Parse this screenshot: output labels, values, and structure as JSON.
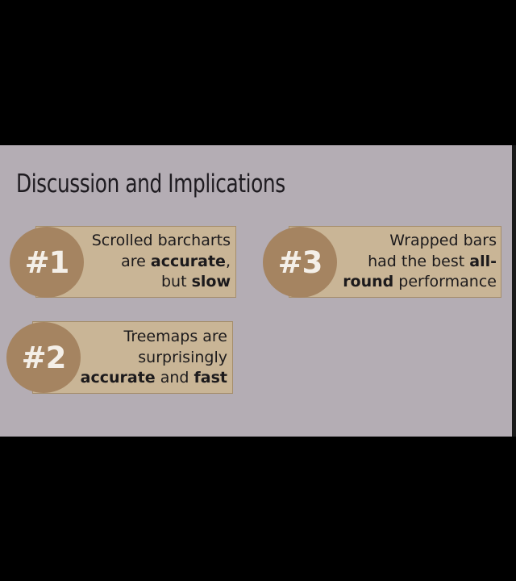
{
  "slide": {
    "title": "Discussion and Implications"
  },
  "findings": [
    {
      "badge": "#1",
      "lines": [
        [
          {
            "text": "Scrolled barcharts",
            "bold": false
          }
        ],
        [
          {
            "text": "are ",
            "bold": false
          },
          {
            "text": "accurate",
            "bold": true
          },
          {
            "text": ",",
            "bold": false
          }
        ],
        [
          {
            "text": "but ",
            "bold": false
          },
          {
            "text": "slow",
            "bold": true
          }
        ]
      ]
    },
    {
      "badge": "#2",
      "lines": [
        [
          {
            "text": "Treemaps are",
            "bold": false
          }
        ],
        [
          {
            "text": "surprisingly",
            "bold": false
          }
        ],
        [
          {
            "text": "accurate",
            "bold": true
          },
          {
            "text": " and ",
            "bold": false
          },
          {
            "text": "fast",
            "bold": true
          }
        ]
      ]
    },
    {
      "badge": "#3",
      "lines": [
        [
          {
            "text": "Wrapped bars",
            "bold": false
          }
        ],
        [
          {
            "text": "had the best ",
            "bold": false
          },
          {
            "text": "all-",
            "bold": true
          }
        ],
        [
          {
            "text": "round",
            "bold": true
          },
          {
            "text": " performance",
            "bold": false
          }
        ]
      ]
    }
  ],
  "colors": {
    "background": "#000000",
    "slide": "#b4adb4",
    "card": "#c9b596",
    "badge": "#a58461",
    "badge_text": "#f4efe8"
  }
}
